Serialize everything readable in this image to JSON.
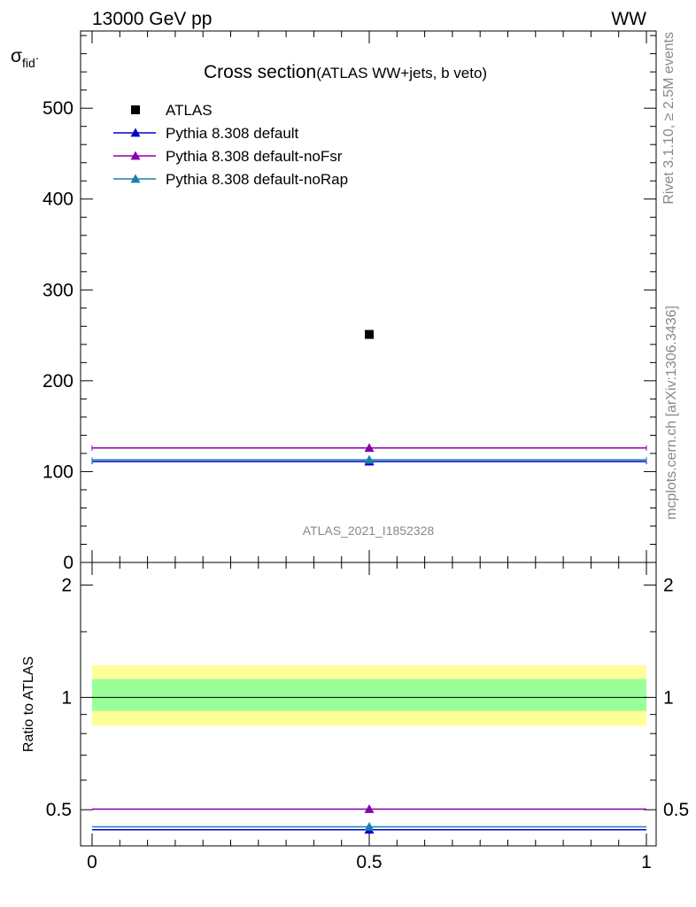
{
  "header": {
    "energy_label": "13000 GeV pp",
    "process_label": "WW"
  },
  "side_labels": {
    "rivet": "Rivet 3.1.10, ≥ 2.5M events",
    "mcplots": "mcplots.cern.ch [arXiv:1306.3436]"
  },
  "chart_data": [
    {
      "type": "scatter",
      "panel": "main",
      "title": "Cross section",
      "subtitle": "(ATLAS WW+jets, b veto)",
      "ylabel": "σ_fid",
      "ylabel_main": "σ",
      "ylabel_sub": "fid",
      "ylabel_suffix": "·",
      "watermark": "ATLAS_2021_I1852328",
      "xlim": [
        0,
        1
      ],
      "ylim": [
        0,
        585
      ],
      "y_ticks": [
        0,
        100,
        200,
        300,
        400,
        500
      ],
      "y_tick_labels": [
        "0",
        "100",
        "200",
        "300",
        "400",
        "500"
      ],
      "legend_position": "top-left",
      "grid": false,
      "series": [
        {
          "name": "ATLAS",
          "x": [
            0.5
          ],
          "y": [
            251
          ],
          "marker": "square",
          "color": "#000000",
          "line": false
        },
        {
          "name": "Pythia 8.308 default",
          "x": [
            0.5
          ],
          "y": [
            111
          ],
          "x_range": [
            0,
            1
          ],
          "marker": "triangle",
          "color": "#0000cc",
          "line": true
        },
        {
          "name": "Pythia 8.308 default-noFsr",
          "x": [
            0.5
          ],
          "y": [
            126
          ],
          "x_range": [
            0,
            1
          ],
          "marker": "triangle",
          "color": "#8800aa",
          "line": true
        },
        {
          "name": "Pythia 8.308 default-noRap",
          "x": [
            0.5
          ],
          "y": [
            113
          ],
          "x_range": [
            0,
            1
          ],
          "marker": "triangle",
          "color": "#1a7fae",
          "line": true
        }
      ]
    },
    {
      "type": "scatter",
      "panel": "ratio",
      "ylabel": "Ratio to ATLAS",
      "xlim": [
        0,
        1
      ],
      "ylim": [
        0.4,
        2.3
      ],
      "log_y": true,
      "x_ticks": [
        0,
        0.5,
        1
      ],
      "x_tick_labels": [
        "0",
        "0.5",
        "1"
      ],
      "y_ticks": [
        0.5,
        1,
        2
      ],
      "y_tick_labels": [
        "0.5",
        "1",
        "2"
      ],
      "bands": [
        {
          "low": 0.84,
          "high": 1.22,
          "color": "#ffff99"
        },
        {
          "low": 0.92,
          "high": 1.12,
          "color": "#99ff99"
        }
      ],
      "reference_line": 1,
      "series": [
        {
          "name": "Pythia 8.308 default",
          "x": [
            0.5
          ],
          "y": [
            0.442
          ],
          "marker": "triangle",
          "color": "#0000cc"
        },
        {
          "name": "Pythia 8.308 default-noFsr",
          "x": [
            0.5
          ],
          "y": [
            0.502
          ],
          "marker": "triangle",
          "color": "#8800aa"
        },
        {
          "name": "Pythia 8.308 default-noRap",
          "x": [
            0.5
          ],
          "y": [
            0.45
          ],
          "marker": "triangle",
          "color": "#1a7fae"
        }
      ]
    }
  ]
}
